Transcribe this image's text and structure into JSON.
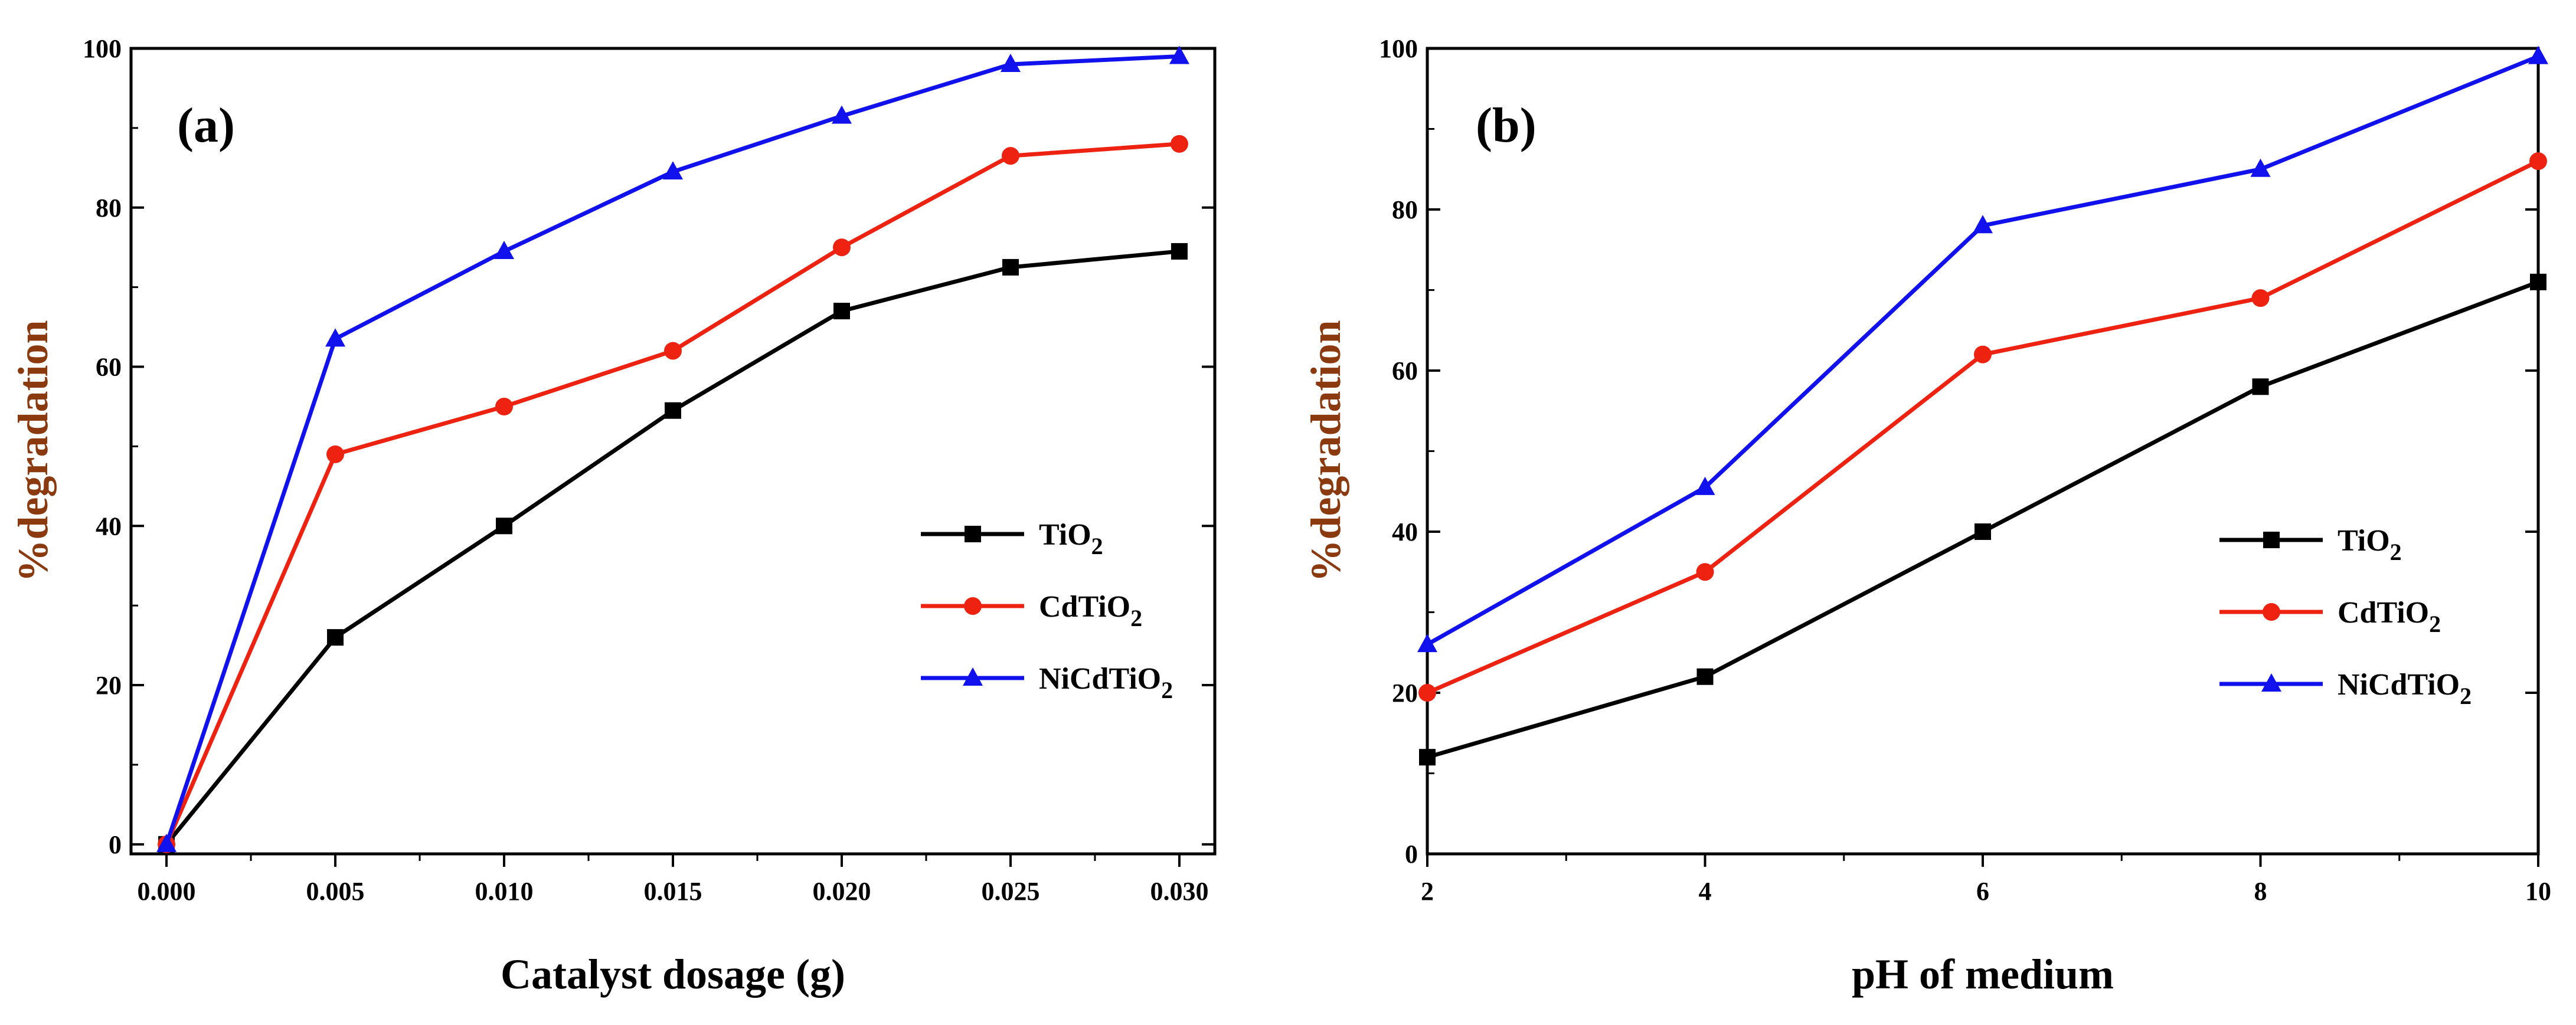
{
  "colors": {
    "TiO2": "#000000",
    "CdTiO2": "#ee2211",
    "NiCdTiO2": "#1111ee",
    "axis": "#000000",
    "ylabel": "#8b3a0f",
    "xlabel": "#000000"
  },
  "chart_data": [
    {
      "type": "line",
      "panel_label": "(a)",
      "xlabel": "Catalyst dosage (g)",
      "ylabel": "%degradation",
      "xlim": [
        0.0,
        0.03
      ],
      "ylim": [
        0,
        100
      ],
      "x": [
        0.0,
        0.005,
        0.01,
        0.015,
        0.02,
        0.025,
        0.03
      ],
      "x_tick_labels": [
        "0.000",
        "0.005",
        "0.010",
        "0.015",
        "0.020",
        "0.025",
        "0.030"
      ],
      "y_ticks": [
        0,
        20,
        40,
        60,
        80,
        100
      ],
      "y_tick_labels": [
        "0",
        "20",
        "40",
        "60",
        "80",
        "100"
      ],
      "legend_position": "center-right",
      "series": [
        {
          "key": "TiO2",
          "name": "TiO",
          "sub": "2",
          "marker": "square",
          "values": [
            0,
            26,
            40,
            54.5,
            67,
            72.5,
            74.5
          ]
        },
        {
          "key": "CdTiO2",
          "name": "CdTiO",
          "sub": "2",
          "marker": "circle",
          "values": [
            0,
            49,
            55,
            62,
            75,
            86.5,
            88
          ]
        },
        {
          "key": "NiCdTiO2",
          "name": "NiCdTiO",
          "sub": "2",
          "marker": "triangle",
          "values": [
            0,
            63.5,
            74.5,
            84.5,
            91.5,
            98,
            99
          ]
        }
      ]
    },
    {
      "type": "line",
      "panel_label": "(b)",
      "xlabel": "pH of medium",
      "ylabel": "%degradation",
      "xlim": [
        2,
        10
      ],
      "ylim": [
        0,
        100
      ],
      "x": [
        2,
        4,
        6,
        8,
        10
      ],
      "x_tick_labels": [
        "2",
        "4",
        "6",
        "8",
        "10"
      ],
      "y_ticks": [
        0,
        20,
        40,
        60,
        80,
        100
      ],
      "y_tick_labels": [
        "0",
        "20",
        "40",
        "60",
        "80",
        "100"
      ],
      "legend_position": "lower-right",
      "series": [
        {
          "key": "TiO2",
          "name": "TiO",
          "sub": "2",
          "marker": "square",
          "values": [
            12,
            22,
            40,
            58,
            71
          ]
        },
        {
          "key": "CdTiO2",
          "name": "CdTiO",
          "sub": "2",
          "marker": "circle",
          "values": [
            20,
            35,
            62,
            69,
            86
          ]
        },
        {
          "key": "NiCdTiO2",
          "name": "NiCdTiO",
          "sub": "2",
          "marker": "triangle",
          "values": [
            26,
            45.5,
            78,
            85,
            99
          ]
        }
      ]
    }
  ]
}
